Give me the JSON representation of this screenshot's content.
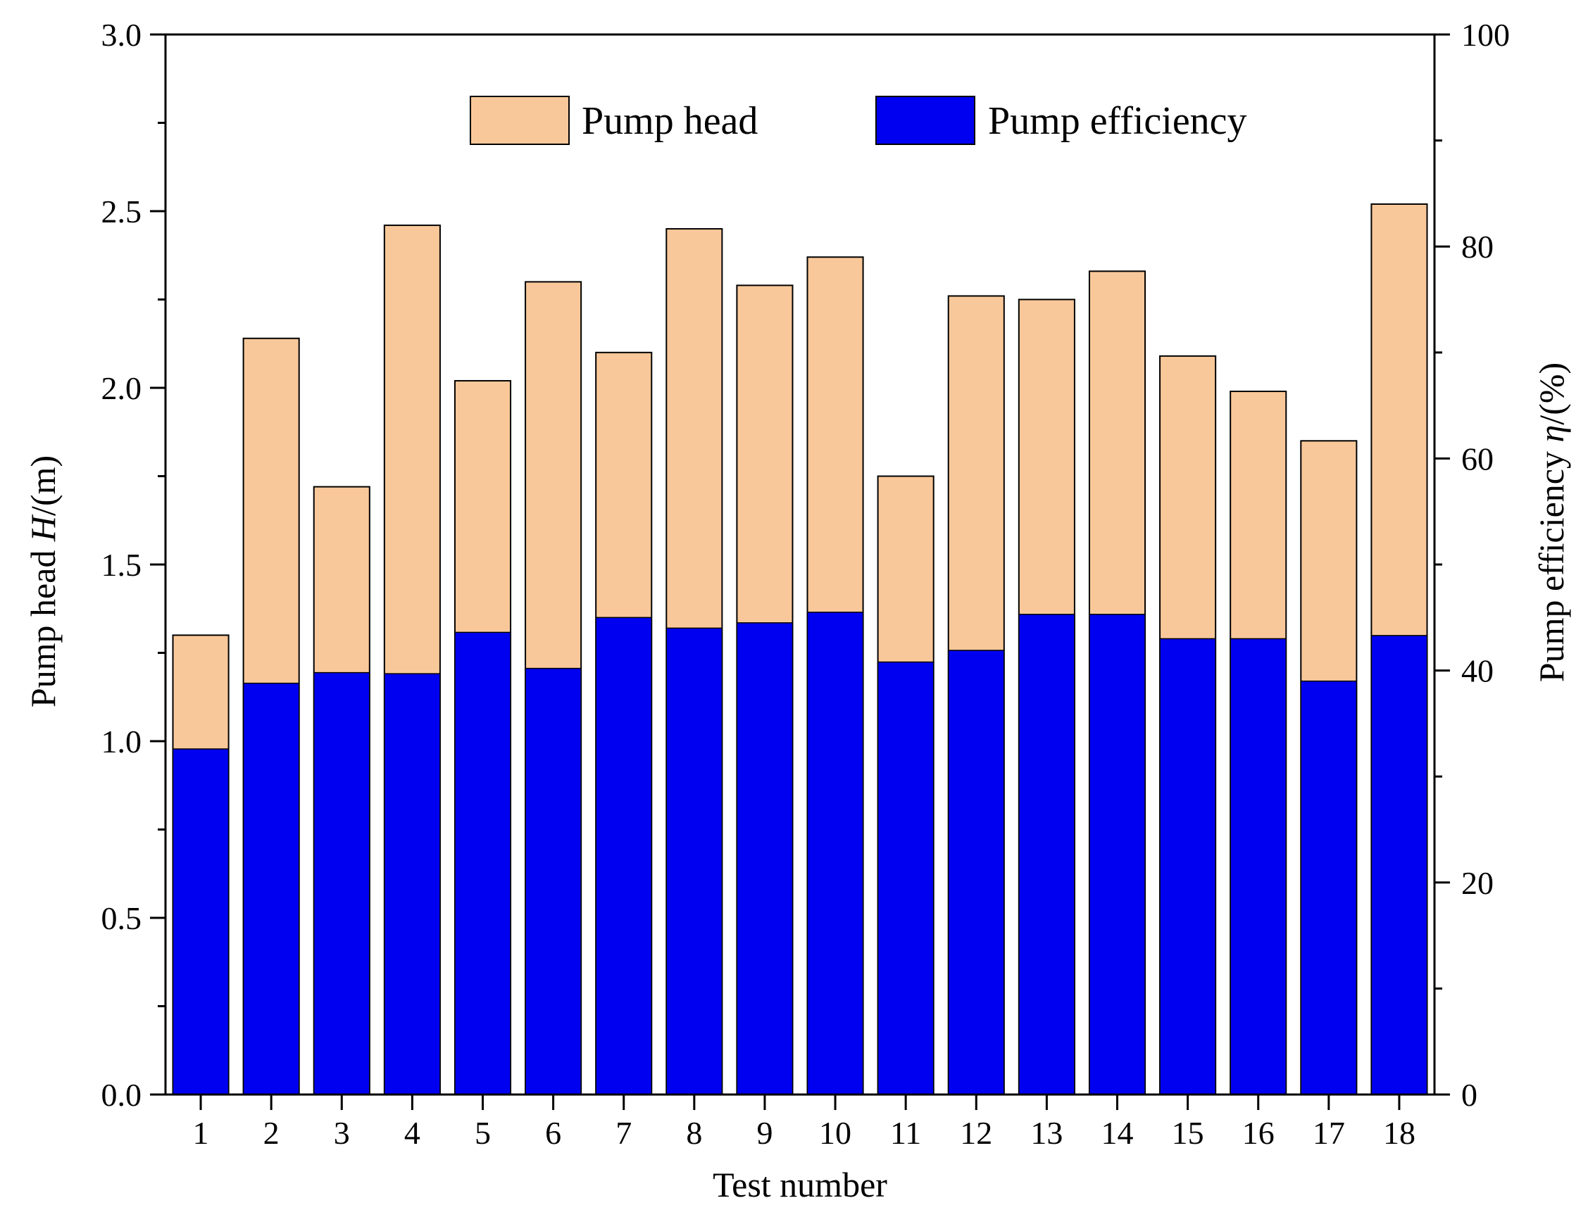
{
  "chart_data": {
    "type": "bar",
    "categories": [
      "1",
      "2",
      "3",
      "4",
      "5",
      "6",
      "7",
      "8",
      "9",
      "10",
      "11",
      "12",
      "13",
      "14",
      "15",
      "16",
      "17",
      "18"
    ],
    "series": [
      {
        "name": "Pump head",
        "axis": "left",
        "color": "#F9C89A",
        "values": [
          1.3,
          2.14,
          1.72,
          2.46,
          2.02,
          2.3,
          2.1,
          2.45,
          2.29,
          2.37,
          1.75,
          2.26,
          2.25,
          2.33,
          2.09,
          1.99,
          1.85,
          2.52
        ]
      },
      {
        "name": "Pump efficiency",
        "axis": "right",
        "color": "#0000F0",
        "values": [
          32.6,
          38.8,
          39.8,
          39.7,
          43.6,
          40.2,
          45.0,
          44.0,
          44.5,
          45.5,
          40.8,
          41.9,
          45.3,
          45.3,
          43.0,
          43.0,
          39.0,
          43.3
        ]
      }
    ],
    "xlabel": "Test number",
    "ylabel_left": {
      "prefix": "Pump head ",
      "symbol": "H",
      "suffix": "/(m)"
    },
    "ylabel_right": {
      "prefix": "Pump efficiency ",
      "symbol": "η",
      "suffix": "/(%)"
    },
    "ylim_left": [
      0,
      3.0
    ],
    "yticks_left": [
      "0.0",
      "0.5",
      "1.0",
      "1.5",
      "2.0",
      "2.5",
      "3.0"
    ],
    "ylim_right": [
      0,
      100
    ],
    "yticks_right": [
      "0",
      "20",
      "40",
      "60",
      "80",
      "100"
    ],
    "grid": false,
    "legend": {
      "placement": "top-center",
      "entries": [
        "Pump head",
        "Pump efficiency"
      ]
    }
  }
}
